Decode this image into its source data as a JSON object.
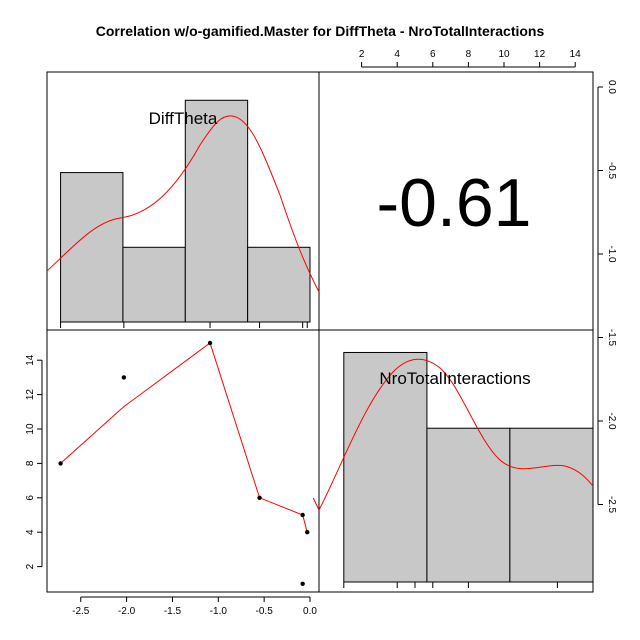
{
  "title": "Correlation w/o-gamified.Master for DiffTheta - NroTotalInteractions",
  "chart_data": {
    "type": "scatter-matrix",
    "variables": [
      "DiffTheta",
      "NroTotalInteractions"
    ],
    "correlation_label": "-0.61",
    "x_ticks_bottom": [
      "-2.5",
      "-2.0",
      "-1.5",
      "-1.0",
      "-0.5",
      "0.0"
    ],
    "y_ticks_left": [
      "2",
      "4",
      "6",
      "8",
      "10",
      "12",
      "14"
    ],
    "x_ticks_top": [
      "2",
      "4",
      "6",
      "8",
      "10",
      "12",
      "14"
    ],
    "y_ticks_right": [
      "0.0",
      "-0.5",
      "-1.0",
      "-1.5",
      "-2.0",
      "-2.5"
    ],
    "scatter_points": [
      {
        "x": -2.72,
        "y": 8
      },
      {
        "x": -2.03,
        "y": 13
      },
      {
        "x": -1.09,
        "y": 15
      },
      {
        "x": -0.55,
        "y": 6
      },
      {
        "x": -0.08,
        "y": 5
      },
      {
        "x": -0.03,
        "y": 4
      },
      {
        "x": -0.08,
        "y": 1
      }
    ],
    "smooth_line": [
      {
        "x": -2.72,
        "y": 8
      },
      {
        "x": -2.03,
        "y": 11.3
      },
      {
        "x": -1.09,
        "y": 15
      },
      {
        "x": -0.55,
        "y": 6
      },
      {
        "x": -0.08,
        "y": 5
      },
      {
        "x": -0.03,
        "y": 4
      }
    ],
    "hist_difftheta": {
      "bins": [
        [
          -2.72,
          -2.04
        ],
        [
          -2.04,
          -1.36
        ],
        [
          -1.36,
          -0.68
        ],
        [
          -0.68,
          0.0
        ]
      ],
      "density": [
        0.62,
        0.31,
        0.92,
        0.31
      ],
      "ymax": 1.0
    },
    "hist_nro": {
      "bins": [
        [
          1,
          5.67
        ],
        [
          5.67,
          10.33
        ],
        [
          10.33,
          15
        ]
      ],
      "density": [
        1.0,
        0.67,
        0.67
      ],
      "ymax": 1.05
    },
    "hist_color": "#c8c8c8",
    "fit_color": "#ff0000",
    "panel_border_color": "#000000"
  }
}
